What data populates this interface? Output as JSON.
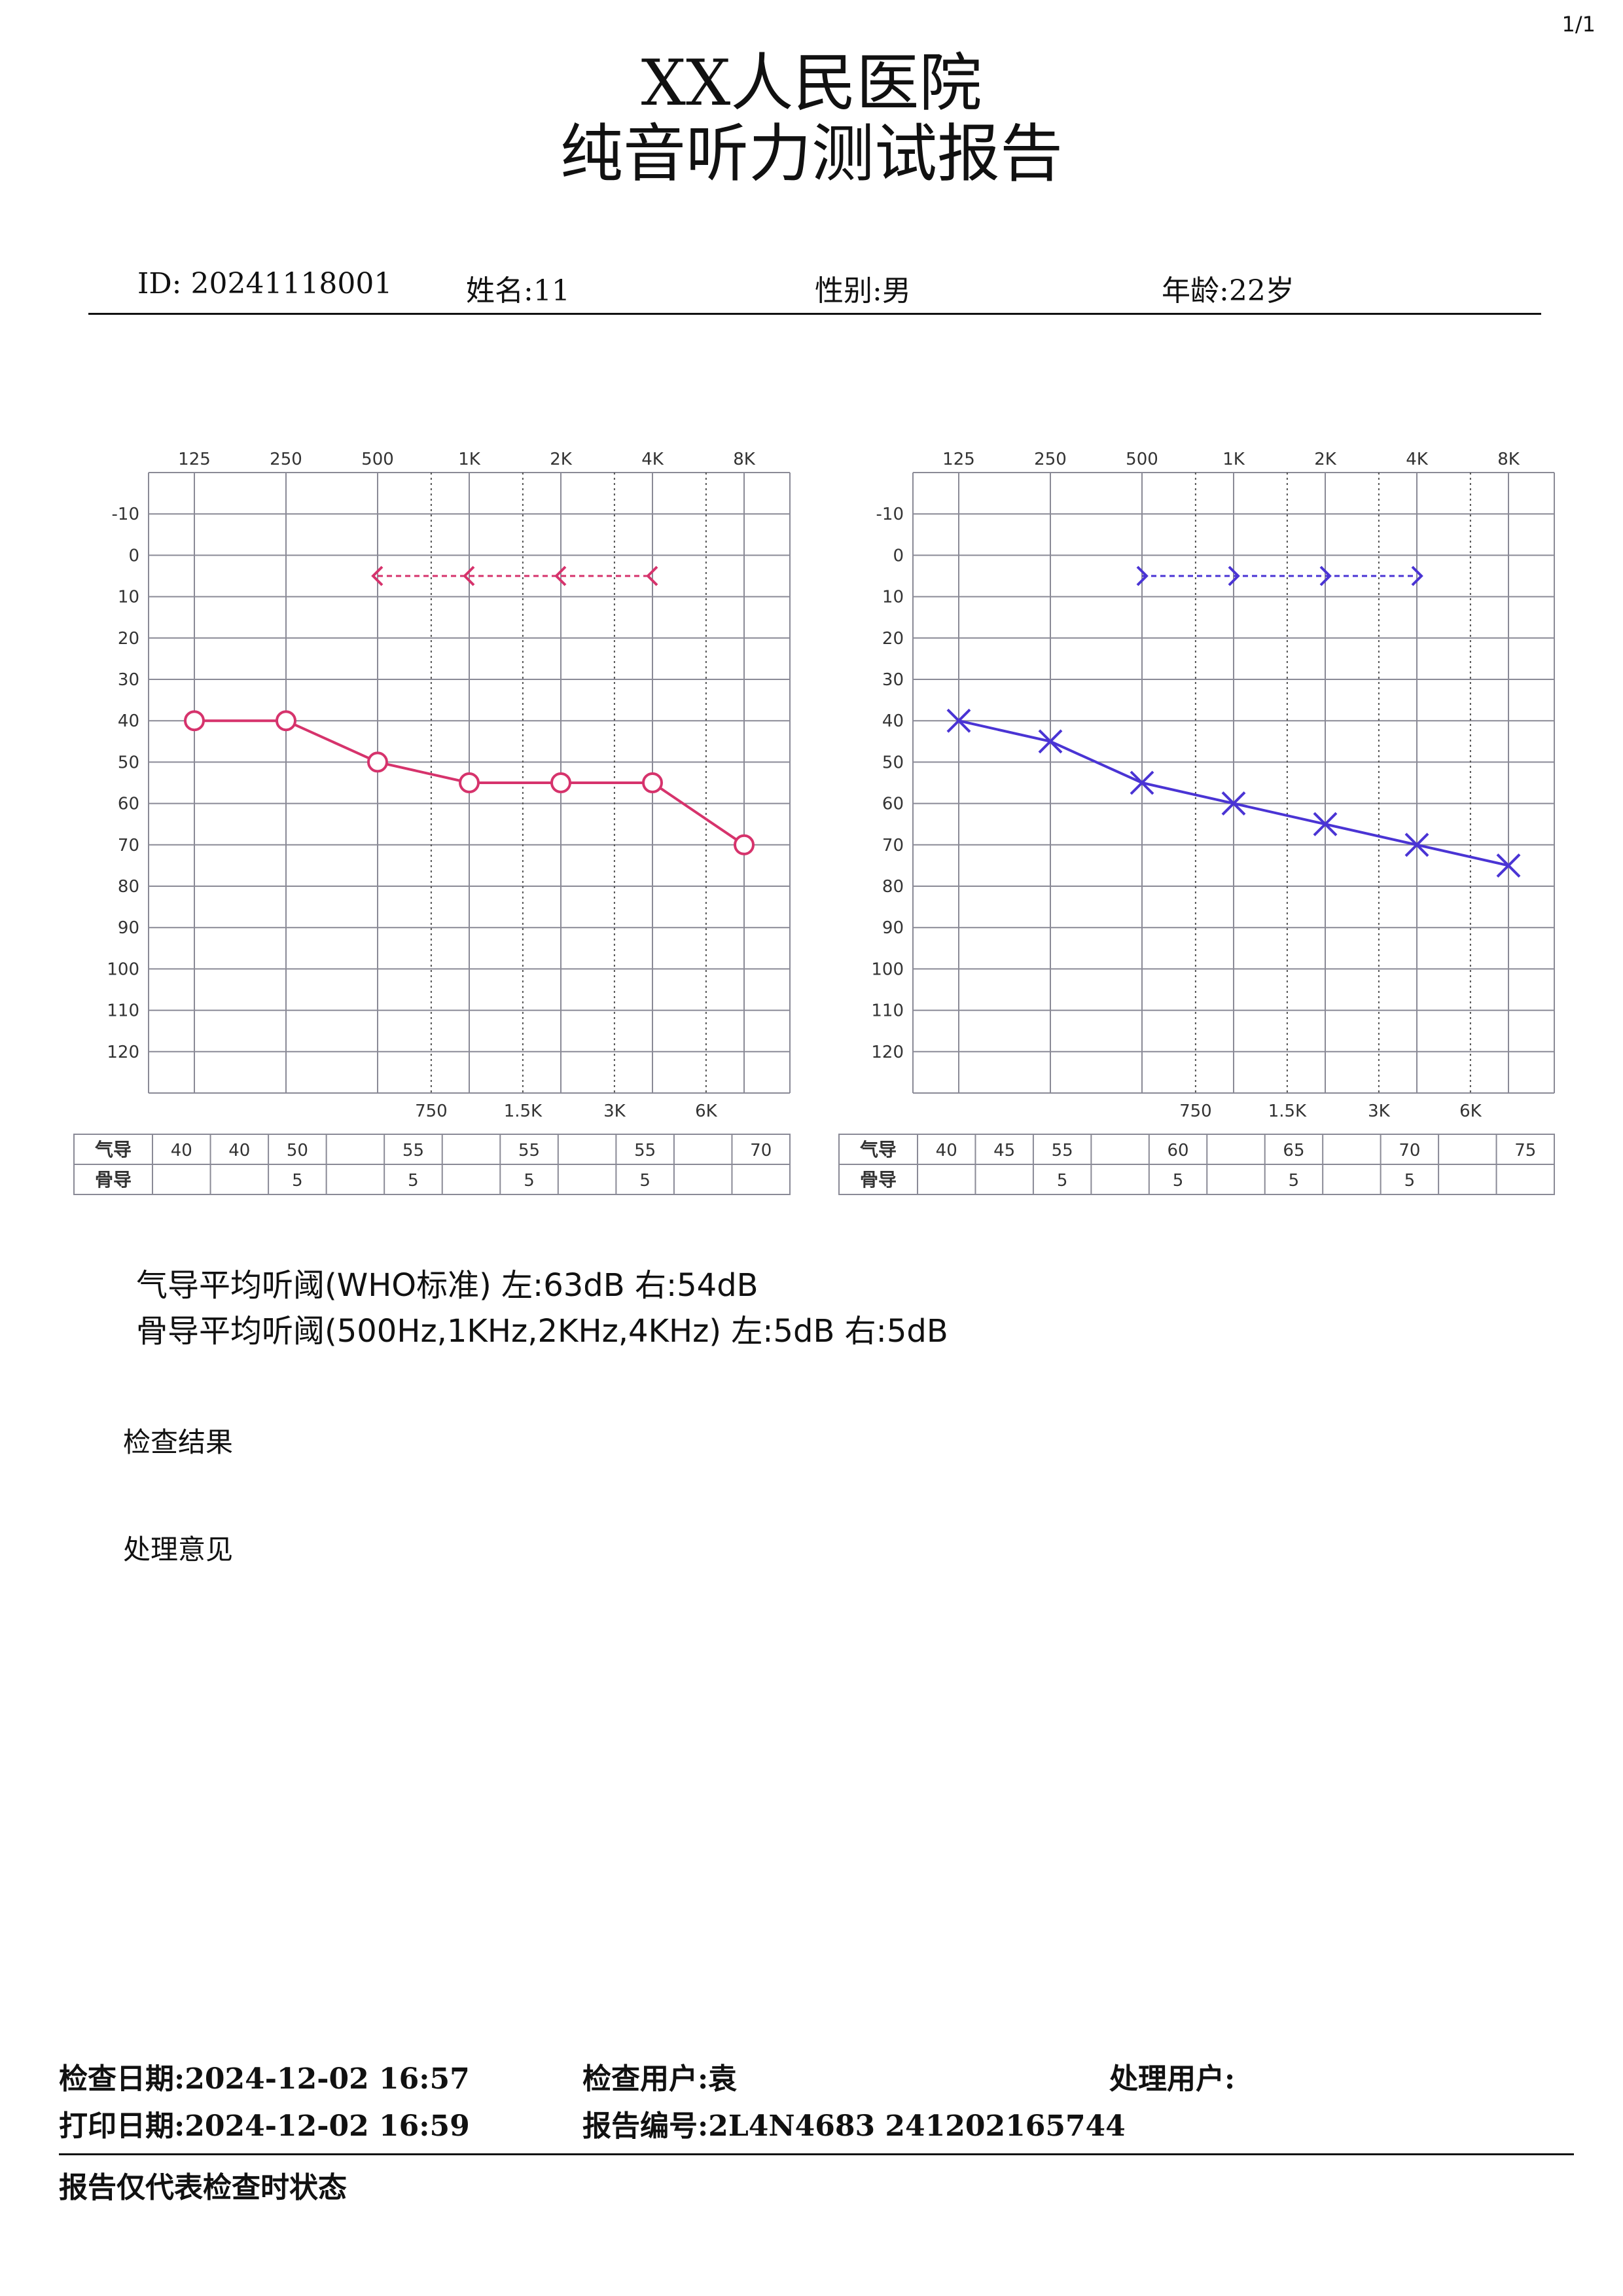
{
  "page": "1/1",
  "header": {
    "hospital": "XX人民医院",
    "title": "纯音听力测试报告",
    "id": "ID: 20241118001",
    "name": "姓名:11",
    "gender": "性别:男",
    "age": "年龄:22岁"
  },
  "summary": {
    "ac_line": "气导平均听阈(WHO标准)    左:63dB  右:54dB",
    "bc_line": "骨导平均听阈(500Hz,1KHz,2KHz,4KHz)    左:5dB  右:5dB"
  },
  "sections": {
    "result": "检查结果",
    "advice": "处理意见"
  },
  "footer": {
    "exam_date": "检查日期:2024-12-02 16:57",
    "print_date": "打印日期:2024-12-02 16:59",
    "exam_user": "检查用户:袁",
    "report_no": "报告编号:2L4N4683 241202165744",
    "handler": "处理用户:",
    "note": "报告仅代表检查时状态"
  },
  "chart_data": [
    {
      "type": "line",
      "title": "",
      "xlabel": "",
      "ylabel": "",
      "x_top_labels": [
        "125",
        "250",
        "500",
        "1K",
        "2K",
        "4K",
        "8K"
      ],
      "x_bottom_labels": [
        "750",
        "1.5K",
        "3K",
        "6K"
      ],
      "y_ticks": [
        "-10",
        "0",
        "10",
        "20",
        "30",
        "40",
        "50",
        "60",
        "70",
        "80",
        "90",
        "100",
        "110",
        "120"
      ],
      "ylim": [
        -20,
        130
      ],
      "y_inverted": true,
      "color": "#d6336c",
      "series": [
        {
          "kind": "air",
          "marker": "circle",
          "points": [
            [
              125,
              40
            ],
            [
              250,
              40
            ],
            [
              500,
              50
            ],
            [
              1000,
              55
            ],
            [
              2000,
              55
            ],
            [
              4000,
              55
            ],
            [
              8000,
              70
            ]
          ]
        },
        {
          "kind": "bone",
          "marker": "arrow-left",
          "dashed": true,
          "points": [
            [
              500,
              5
            ],
            [
              1000,
              5
            ],
            [
              2000,
              5
            ],
            [
              4000,
              5
            ]
          ]
        }
      ],
      "table": {
        "row_labels": [
          "气导",
          "骨导"
        ],
        "air": [
          "40",
          "40",
          "50",
          "",
          "55",
          "",
          "55",
          "",
          "55",
          "",
          "70"
        ],
        "bone": [
          "",
          "",
          "5",
          "",
          "5",
          "",
          "5",
          "",
          "5",
          "",
          ""
        ]
      }
    },
    {
      "type": "line",
      "title": "",
      "xlabel": "",
      "ylabel": "",
      "x_top_labels": [
        "125",
        "250",
        "500",
        "1K",
        "2K",
        "4K",
        "8K"
      ],
      "x_bottom_labels": [
        "750",
        "1.5K",
        "3K",
        "6K"
      ],
      "y_ticks": [
        "-10",
        "0",
        "10",
        "20",
        "30",
        "40",
        "50",
        "60",
        "70",
        "80",
        "90",
        "100",
        "110",
        "120"
      ],
      "ylim": [
        -20,
        130
      ],
      "y_inverted": true,
      "color": "#4a34d4",
      "series": [
        {
          "kind": "air",
          "marker": "cross",
          "points": [
            [
              125,
              40
            ],
            [
              250,
              45
            ],
            [
              500,
              55
            ],
            [
              1000,
              60
            ],
            [
              2000,
              65
            ],
            [
              4000,
              70
            ],
            [
              8000,
              75
            ]
          ]
        },
        {
          "kind": "bone",
          "marker": "arrow-right",
          "dashed": true,
          "points": [
            [
              500,
              5
            ],
            [
              1000,
              5
            ],
            [
              2000,
              5
            ],
            [
              4000,
              5
            ]
          ]
        }
      ],
      "table": {
        "row_labels": [
          "气导",
          "骨导"
        ],
        "air": [
          "40",
          "45",
          "55",
          "",
          "60",
          "",
          "65",
          "",
          "70",
          "",
          "75"
        ],
        "bone": [
          "",
          "",
          "5",
          "",
          "5",
          "",
          "5",
          "",
          "5",
          "",
          ""
        ]
      }
    }
  ]
}
